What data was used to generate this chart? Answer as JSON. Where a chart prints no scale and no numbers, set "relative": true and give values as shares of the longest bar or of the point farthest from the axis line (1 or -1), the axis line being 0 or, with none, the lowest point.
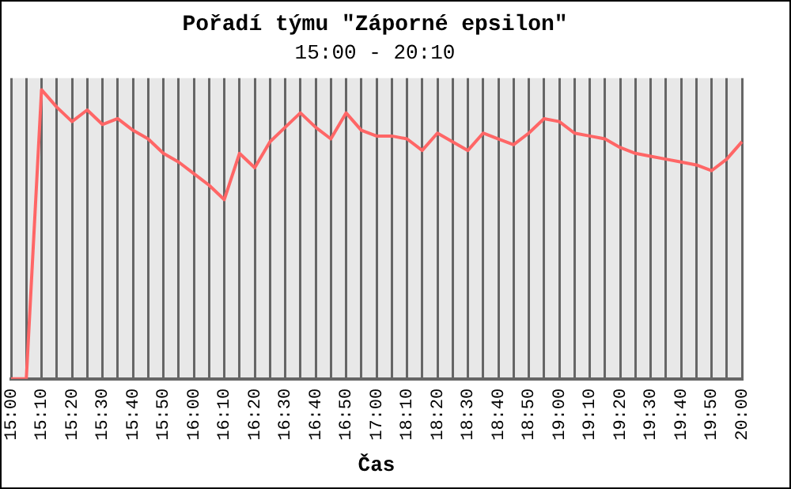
{
  "chart_data": {
    "type": "line",
    "title": "Pořadí týmu \"Záporné epsilon\"",
    "subtitle": "15:00 - 20:10",
    "xlabel": "Čas",
    "relative": true,
    "grid": "x",
    "legend": false,
    "marker": "none",
    "line_style": "solid",
    "categories": [
      "15:00",
      null,
      "15:10",
      null,
      "15:20",
      null,
      "15:30",
      null,
      "15:40",
      null,
      "15:50",
      null,
      "16:00",
      null,
      "16:10",
      null,
      "16:20",
      null,
      "16:30",
      null,
      "16:40",
      null,
      "16:50",
      null,
      "17:00",
      null,
      "18:10",
      null,
      "18:20",
      null,
      "18:30",
      null,
      "18:40",
      null,
      "18:50",
      null,
      "19:00",
      null,
      "19:10",
      null,
      "19:20",
      null,
      "19:30",
      null,
      "19:40",
      null,
      "19:50",
      null,
      "20:00"
    ],
    "series": [
      {
        "color": "#ff6666",
        "values": [
          0,
          0,
          1,
          0.94,
          0.89,
          0.93,
          0.88,
          0.9,
          0.86,
          0.83,
          0.78,
          0.75,
          0.71,
          0.67,
          0.62,
          0.78,
          0.73,
          0.82,
          0.87,
          0.92,
          0.87,
          0.83,
          0.92,
          0.86,
          0.84,
          0.84,
          0.83,
          0.79,
          0.85,
          0.82,
          0.79,
          0.85,
          0.83,
          0.81,
          0.85,
          0.9,
          0.89,
          0.85,
          0.84,
          0.83,
          0.8,
          0.78,
          0.77,
          0.76,
          0.75,
          0.74,
          0.72,
          0.76,
          0.82
        ]
      }
    ]
  }
}
